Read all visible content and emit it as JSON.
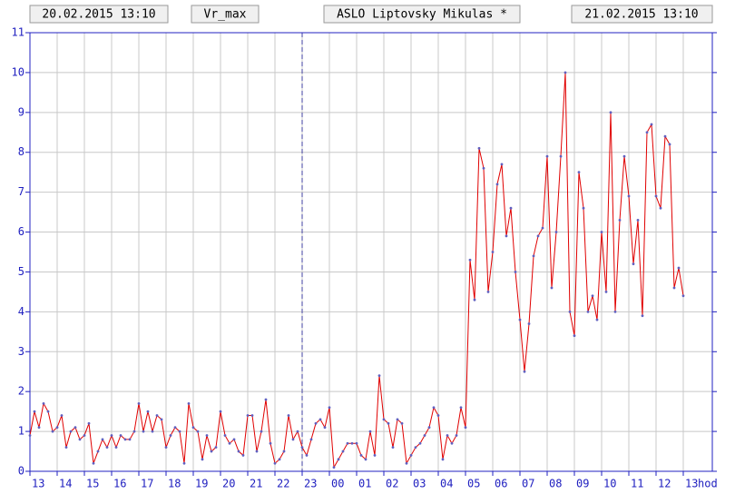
{
  "header": {
    "start": "20.02.2015 13:10",
    "variable": "Vr_max",
    "station": "ASLO Liptovsky Mikulas *",
    "end": "21.02.2015 13:10"
  },
  "chart_data": {
    "type": "line",
    "x_label": "hod",
    "series": [
      {
        "name": "Vr_max",
        "color": "#e00000",
        "marker_color": "#6060c0",
        "values": [
          0.9,
          1.5,
          1.1,
          1.7,
          1.5,
          1.0,
          1.1,
          1.4,
          0.6,
          1.0,
          1.1,
          0.8,
          0.9,
          1.2,
          0.2,
          0.5,
          0.8,
          0.6,
          0.9,
          0.6,
          0.9,
          0.8,
          0.8,
          1.0,
          1.7,
          1.0,
          1.5,
          1.0,
          1.4,
          1.3,
          0.6,
          0.9,
          1.1,
          1.0,
          0.2,
          1.7,
          1.1,
          1.0,
          0.3,
          0.9,
          0.5,
          0.6,
          1.5,
          0.9,
          0.7,
          0.8,
          0.5,
          0.4,
          1.4,
          1.4,
          0.5,
          1.0,
          1.8,
          0.7,
          0.2,
          0.3,
          0.5,
          1.4,
          0.8,
          1.0,
          0.6,
          0.4,
          0.8,
          1.2,
          1.3,
          1.1,
          1.6,
          0.1,
          0.3,
          0.5,
          0.7,
          0.7,
          0.7,
          0.4,
          0.3,
          1.0,
          0.4,
          2.4,
          1.3,
          1.2,
          0.6,
          1.3,
          1.2,
          0.2,
          0.4,
          0.6,
          0.7,
          0.9,
          1.1,
          1.6,
          1.4,
          0.3,
          0.9,
          0.7,
          0.9,
          1.6,
          1.1,
          5.3,
          4.3,
          8.1,
          7.6,
          4.5,
          5.5,
          7.2,
          7.7,
          5.9,
          6.6,
          5.0,
          3.8,
          2.5,
          3.7,
          5.4,
          5.9,
          6.1,
          7.9,
          4.6,
          6.0,
          7.9,
          10.0,
          4.0,
          3.4,
          7.5,
          6.6,
          4.0,
          4.4,
          3.8,
          6.0,
          4.5,
          9.0,
          4.0,
          6.3,
          7.9,
          6.9,
          5.2,
          6.3,
          3.9,
          8.5,
          8.7,
          6.9,
          6.6,
          8.4,
          8.2,
          4.6,
          5.1,
          4.4
        ]
      }
    ],
    "xlim": [
      0,
      150.4
    ],
    "xticks": [
      {
        "value": 0,
        "label": "13"
      },
      {
        "value": 6,
        "label": "14"
      },
      {
        "value": 12,
        "label": "15"
      },
      {
        "value": 18,
        "label": "16"
      },
      {
        "value": 24,
        "label": "17"
      },
      {
        "value": 30,
        "label": "18"
      },
      {
        "value": 36,
        "label": "19"
      },
      {
        "value": 42,
        "label": "20"
      },
      {
        "value": 48,
        "label": "21"
      },
      {
        "value": 54,
        "label": "22"
      },
      {
        "value": 60,
        "label": "23"
      },
      {
        "value": 66,
        "label": "00"
      },
      {
        "value": 72,
        "label": "01"
      },
      {
        "value": 78,
        "label": "02"
      },
      {
        "value": 84,
        "label": "03"
      },
      {
        "value": 90,
        "label": "04"
      },
      {
        "value": 96,
        "label": "05"
      },
      {
        "value": 102,
        "label": "06"
      },
      {
        "value": 108,
        "label": "07"
      },
      {
        "value": 114,
        "label": "08"
      },
      {
        "value": 120,
        "label": "09"
      },
      {
        "value": 126,
        "label": "10"
      },
      {
        "value": 132,
        "label": "11"
      },
      {
        "value": 138,
        "label": "12"
      },
      {
        "value": 144,
        "label": "13"
      }
    ],
    "ylim": [
      0,
      11
    ],
    "yticks": [
      0,
      1,
      2,
      3,
      4,
      5,
      6,
      7,
      8,
      9,
      10,
      11
    ],
    "grid": true,
    "vline": 60
  }
}
